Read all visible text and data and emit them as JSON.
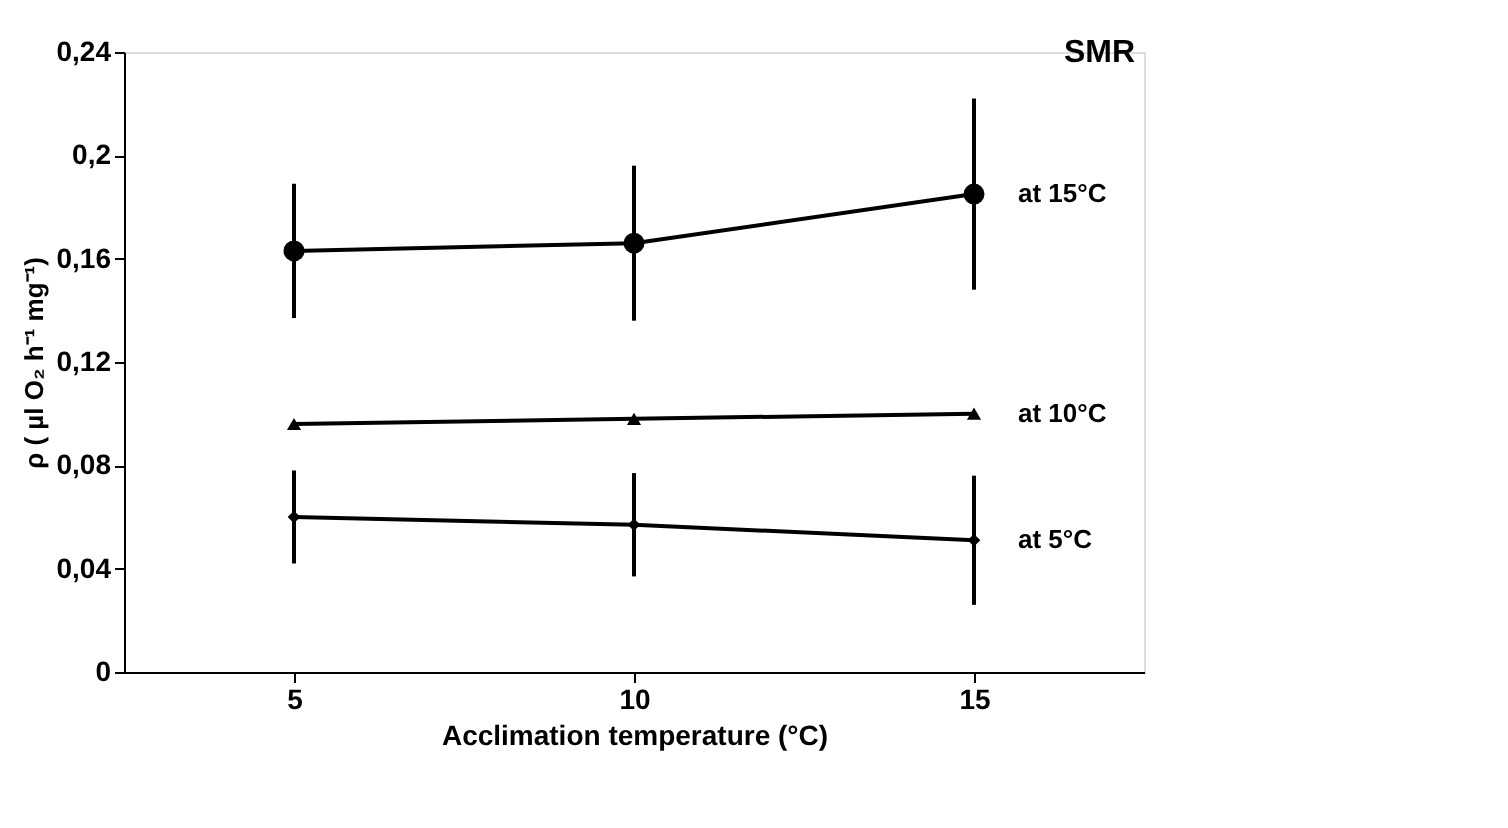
{
  "chart_data": {
    "type": "line",
    "title": "SMR",
    "xlabel": "Acclimation temperature (°C)",
    "ylabel": "ρ ( µl O₂ h⁻¹ mg⁻¹)",
    "categories": [
      "5",
      "10",
      "15"
    ],
    "ylim": [
      0,
      0.24
    ],
    "yticks": [
      {
        "value": 0,
        "label": "0"
      },
      {
        "value": 0.04,
        "label": "0,04"
      },
      {
        "value": 0.08,
        "label": "0,08"
      },
      {
        "value": 0.12,
        "label": "0,12"
      },
      {
        "value": 0.16,
        "label": "0,16"
      },
      {
        "value": 0.2,
        "label": "0,2"
      },
      {
        "value": 0.24,
        "label": "0,24"
      }
    ],
    "legend": false,
    "line_style": "solid",
    "series": [
      {
        "name": "at 15°C",
        "color": "#000000",
        "marker": "circle",
        "values": [
          0.163,
          0.166,
          0.185
        ],
        "errors": [
          0.026,
          0.03,
          0.037
        ]
      },
      {
        "name": "at 10°C",
        "color": "#000000",
        "marker": "triangle",
        "values": [
          0.096,
          0.098,
          0.1
        ]
      },
      {
        "name": "at 5°C",
        "color": "#000000",
        "marker": "diamond",
        "values": [
          0.06,
          0.057,
          0.051
        ],
        "errors": [
          0.018,
          0.02,
          0.025
        ]
      }
    ]
  }
}
